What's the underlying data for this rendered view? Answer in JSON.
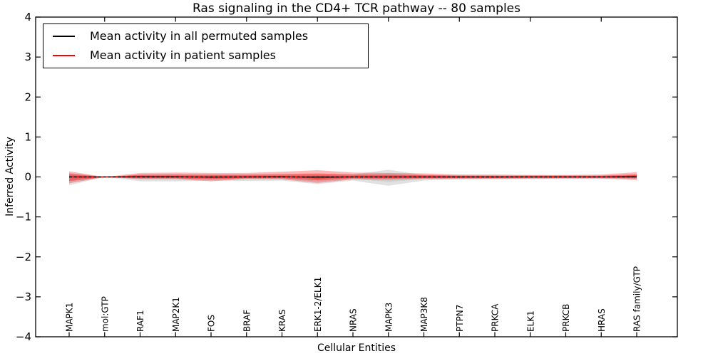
{
  "chart": {
    "title": "Ras signaling in the CD4+ TCR pathway -- 80 samples",
    "xlabel": "Cellular Entities",
    "ylabel": "Inferred Activity",
    "legend": [
      {
        "label": "Mean activity in all permuted samples",
        "color": "#000000"
      },
      {
        "label": "Mean activity in patient samples",
        "color": "#ff0000"
      }
    ]
  },
  "chart_data": {
    "type": "line",
    "title": "Ras signaling in the CD4+ TCR pathway -- 80 samples",
    "xlabel": "Cellular Entities",
    "ylabel": "Inferred Activity",
    "ylim": [
      -4,
      4
    ],
    "yticks": [
      4,
      3,
      2,
      1,
      0,
      -1,
      -2,
      -3,
      -4
    ],
    "grid": false,
    "legend_position": "upper left",
    "categories": [
      "MAPK1",
      "mol:GTP",
      "RAF1",
      "MAP2K1",
      "FOS",
      "BRAF",
      "KRAS",
      "ERK1-2/ELK1",
      "NRAS",
      "MAPK3",
      "MAP3K8",
      "PTPN7",
      "PRKCA",
      "ELK1",
      "PRKCB",
      "HRAS",
      "RAS family/GTP"
    ],
    "series": [
      {
        "name": "Mean activity in all permuted samples",
        "color": "#000000",
        "values": [
          0,
          0,
          0,
          0,
          0,
          0,
          0,
          0,
          0,
          0,
          0,
          0,
          0,
          0,
          0,
          0,
          0
        ]
      },
      {
        "name": "Mean activity in patient samples",
        "color": "#ff0000",
        "values": [
          0,
          0,
          0.01,
          0.01,
          -0.01,
          0,
          0.01,
          -0.02,
          0,
          0,
          0,
          0,
          0,
          0,
          0,
          0,
          0.02
        ]
      }
    ],
    "bands": [
      {
        "name": "permuted-range-outer",
        "color": "#b0b0b0",
        "opacity": 0.38,
        "upper": [
          0.1,
          0,
          0.05,
          0.06,
          0.05,
          0.05,
          0.06,
          0.07,
          0.06,
          0.18,
          0.05,
          0.05,
          0.04,
          0.04,
          0.04,
          0.04,
          0.04
        ],
        "lower": [
          -0.21,
          0,
          -0.11,
          -0.11,
          -0.09,
          -0.1,
          -0.09,
          -0.18,
          -0.09,
          -0.22,
          -0.09,
          -0.06,
          -0.05,
          -0.05,
          -0.04,
          -0.04,
          -0.04
        ]
      },
      {
        "name": "permuted-range-inner",
        "color": "#b0b0b0",
        "opacity": 0.38,
        "upper": [
          0.05,
          0,
          0.03,
          0.03,
          0.03,
          0.03,
          0.03,
          0.04,
          0.03,
          0.09,
          0.03,
          0.03,
          0.02,
          0.02,
          0.02,
          0.02,
          0.02
        ],
        "lower": [
          -0.11,
          0,
          -0.06,
          -0.06,
          -0.05,
          -0.05,
          -0.05,
          -0.1,
          -0.05,
          -0.12,
          -0.05,
          -0.03,
          -0.03,
          -0.03,
          -0.02,
          -0.02,
          -0.02
        ]
      },
      {
        "name": "patient-range-outer",
        "color": "#ff0000",
        "opacity": 0.28,
        "upper": [
          0.14,
          0,
          0.1,
          0.11,
          0.1,
          0.1,
          0.13,
          0.17,
          0.11,
          0.1,
          0.09,
          0.06,
          0.06,
          0.05,
          0.05,
          0.06,
          0.12
        ],
        "lower": [
          -0.16,
          0,
          -0.05,
          -0.05,
          -0.11,
          -0.05,
          -0.06,
          -0.15,
          -0.06,
          -0.07,
          -0.05,
          -0.05,
          -0.05,
          -0.04,
          -0.04,
          -0.04,
          -0.08
        ]
      },
      {
        "name": "patient-range-inner",
        "color": "#ff0000",
        "opacity": 0.33,
        "upper": [
          0.08,
          0,
          0.06,
          0.06,
          0.06,
          0.06,
          0.07,
          0.09,
          0.06,
          0.05,
          0.05,
          0.03,
          0.03,
          0.03,
          0.03,
          0.03,
          0.07
        ],
        "lower": [
          -0.1,
          0,
          -0.03,
          -0.03,
          -0.06,
          -0.03,
          -0.03,
          -0.08,
          -0.03,
          -0.04,
          -0.03,
          -0.03,
          -0.03,
          -0.02,
          -0.02,
          -0.02,
          -0.04
        ]
      }
    ]
  }
}
